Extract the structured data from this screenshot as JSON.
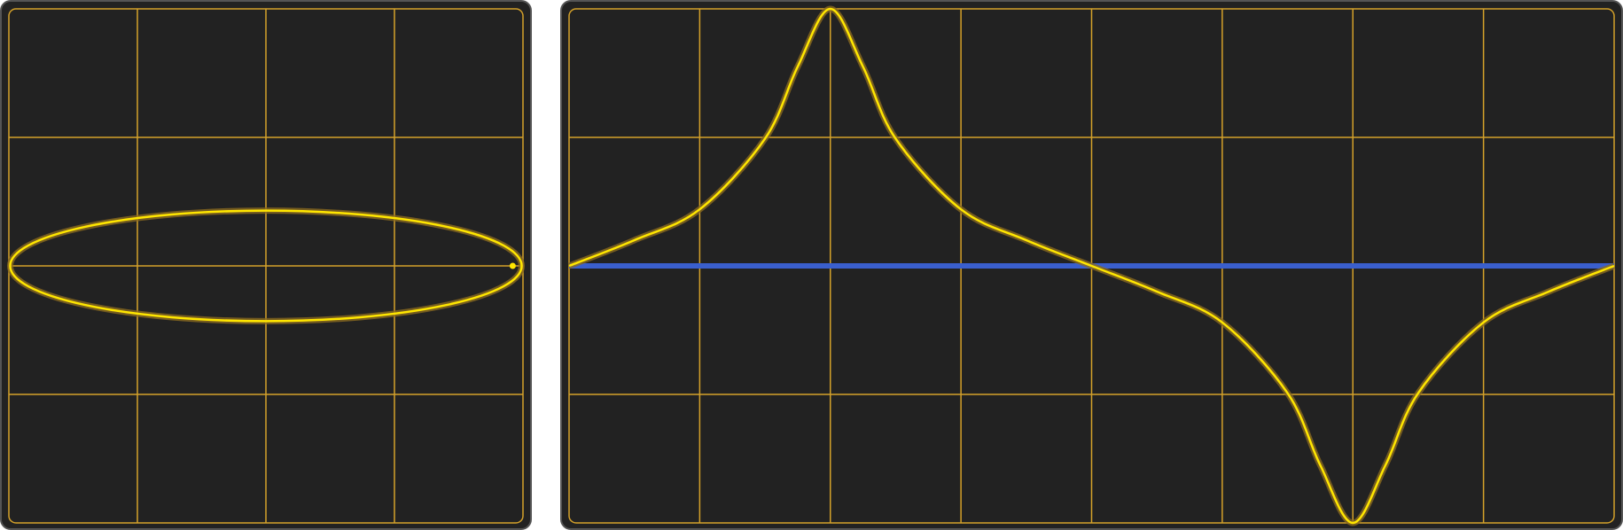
{
  "colors": {
    "background": "#222222",
    "bezel": "#555555",
    "grid": "#d4a12a",
    "trace": "#ffe600",
    "trace_glow": "#8a6a20",
    "reference": "#3a5fcd"
  },
  "chart_data": [
    {
      "type": "scatter",
      "mode": "xy-lissajous",
      "grid": {
        "x_divisions": 4,
        "y_divisions": 4,
        "on": true
      },
      "xlim": [
        -2,
        2
      ],
      "ylim": [
        -2,
        2
      ],
      "series": [
        {
          "shape": "ellipse",
          "center": [
            0,
            0
          ],
          "x_radius": 1.99,
          "y_radius": 0.43,
          "color": "#ffe600"
        }
      ],
      "marker": {
        "x": 1.92,
        "y": 0
      }
    },
    {
      "type": "line",
      "mode": "yt",
      "grid": {
        "x_divisions": 8,
        "y_divisions": 4,
        "on": true
      },
      "xlim": [
        0,
        8
      ],
      "ylim": [
        -2,
        2
      ],
      "series": [
        {
          "x": [
            0,
            0.5,
            1,
            1.5,
            1.75,
            2,
            2.25,
            2.5,
            3,
            3.5,
            4,
            4.5,
            5,
            5.5,
            5.75,
            6,
            6.25,
            6.5,
            7,
            7.5,
            8
          ],
          "values": [
            0,
            0.2,
            0.44,
            0.99,
            1.55,
            2.0,
            1.55,
            0.99,
            0.44,
            0.2,
            0,
            -0.2,
            -0.44,
            -0.99,
            -1.55,
            -2.0,
            -1.55,
            -0.99,
            -0.44,
            -0.2,
            0
          ],
          "color": "#ffe600"
        },
        {
          "x": [
            0,
            8
          ],
          "values": [
            0,
            0
          ],
          "color": "#3a5fcd"
        }
      ]
    }
  ]
}
